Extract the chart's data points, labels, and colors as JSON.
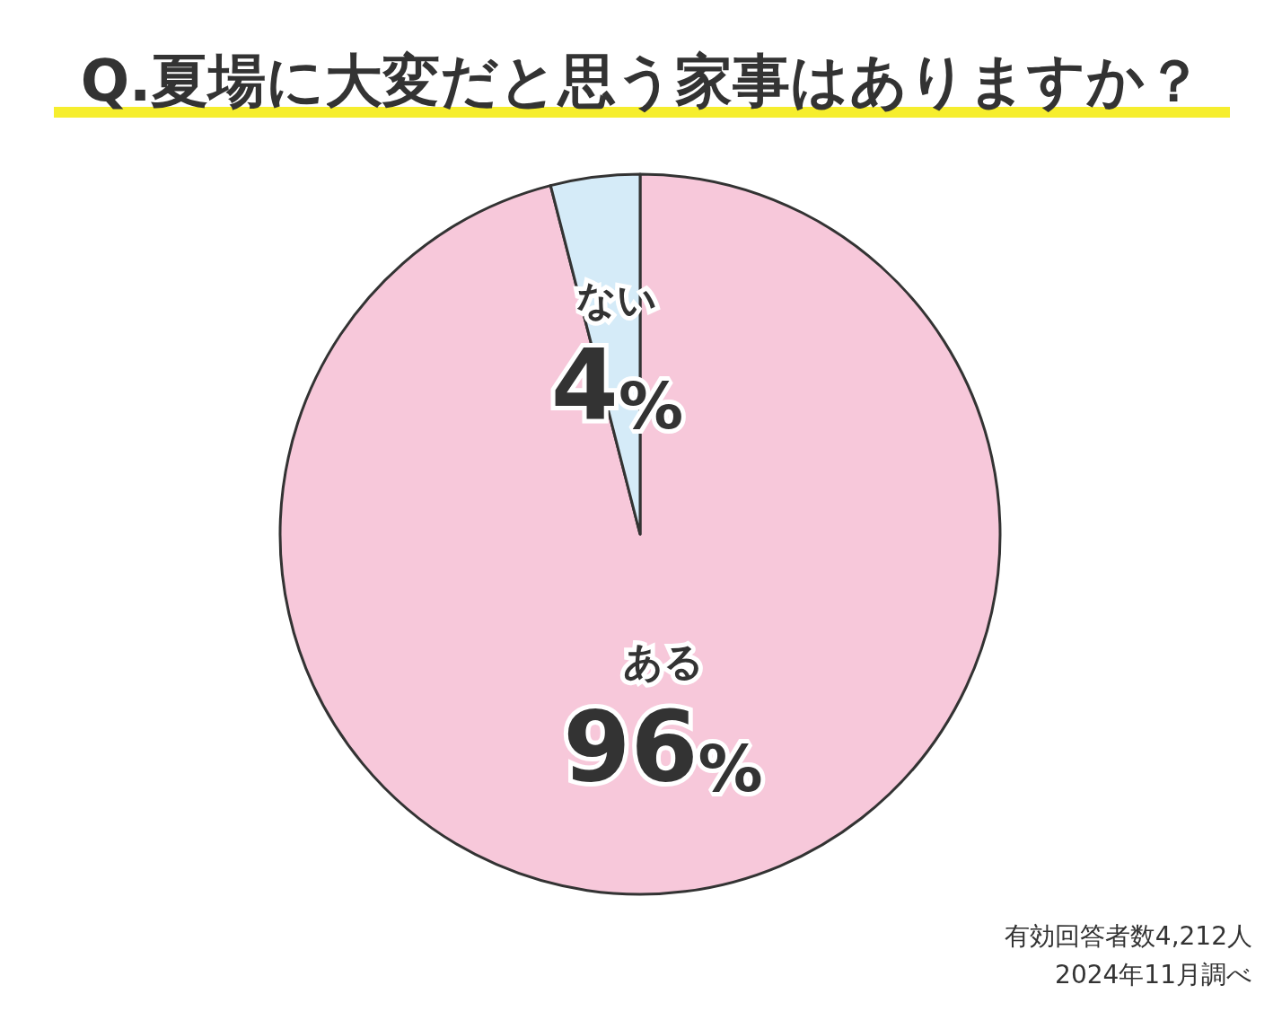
{
  "chart_data": {
    "type": "pie",
    "title": "Q.夏場に大変だと思う家事はありますか？",
    "categories": [
      "ある",
      "ない"
    ],
    "values": [
      96,
      4
    ],
    "colors": [
      "#f7c8da",
      "#d5ebf8"
    ],
    "value_labels": [
      "96%",
      "4%"
    ],
    "annotations": [
      "有効回答者数4,212人",
      "2024年11月調べ"
    ]
  }
}
